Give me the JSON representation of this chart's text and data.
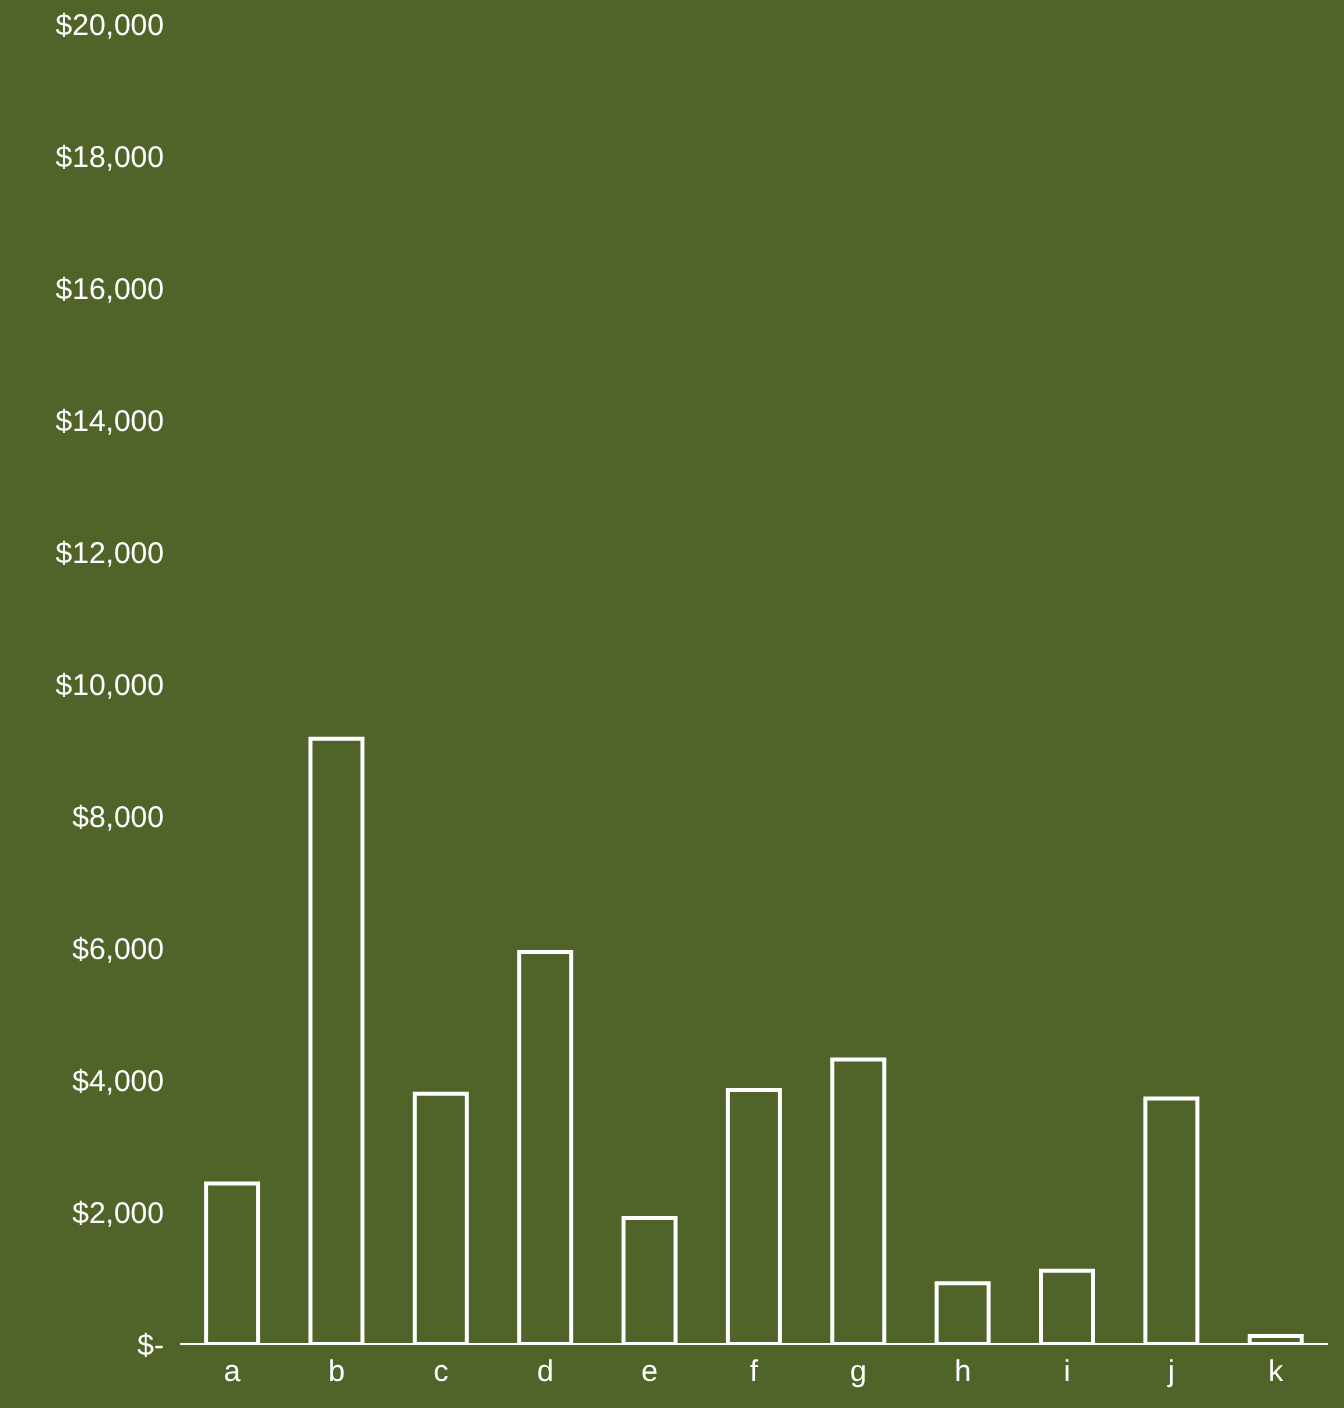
{
  "chart_data": {
    "type": "bar",
    "categories": [
      "a",
      "b",
      "c",
      "d",
      "e",
      "f",
      "g",
      "h",
      "i",
      "j",
      "k"
    ],
    "values": [
      2430,
      9170,
      3790,
      5940,
      1910,
      3850,
      4310,
      920,
      1110,
      3720,
      120
    ],
    "color": "#ffffff",
    "ylim": [
      0,
      20000
    ],
    "yticks": [
      {
        "value": 0,
        "label": "$-"
      },
      {
        "value": 2000,
        "label": "$2,000"
      },
      {
        "value": 4000,
        "label": "$4,000"
      },
      {
        "value": 6000,
        "label": "$6,000"
      },
      {
        "value": 8000,
        "label": "$8,000"
      },
      {
        "value": 10000,
        "label": "$10,000"
      },
      {
        "value": 12000,
        "label": "$12,000"
      },
      {
        "value": 14000,
        "label": "$14,000"
      },
      {
        "value": 16000,
        "label": "$16,000"
      },
      {
        "value": 18000,
        "label": "$18,000"
      },
      {
        "value": 20000,
        "label": "$20,000"
      }
    ],
    "grid": false
  }
}
